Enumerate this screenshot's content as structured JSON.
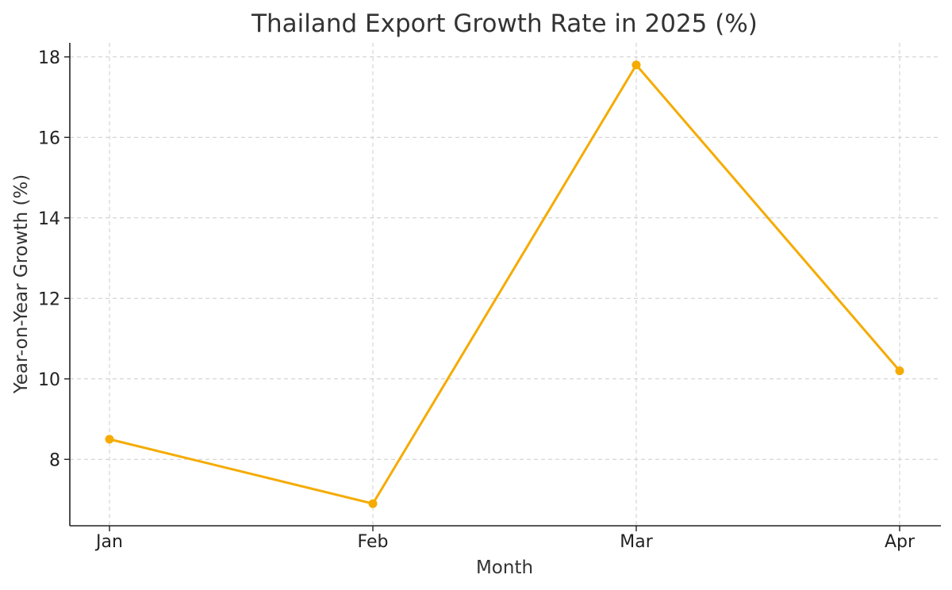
{
  "chart_data": {
    "type": "line",
    "title": "Thailand Export Growth Rate in 2025 (%)",
    "xlabel": "Month",
    "ylabel": "Year-on-Year Growth (%)",
    "categories": [
      "Jan",
      "Feb",
      "Mar",
      "Apr"
    ],
    "series": [
      {
        "values": [
          8.5,
          6.9,
          17.8,
          10.2
        ],
        "color": "#f5ab00"
      }
    ],
    "yticks": [
      8,
      10,
      12,
      14,
      16,
      18
    ],
    "ylim": [
      6.35,
      18.35
    ],
    "grid": true,
    "markers": true,
    "legend": "none"
  }
}
